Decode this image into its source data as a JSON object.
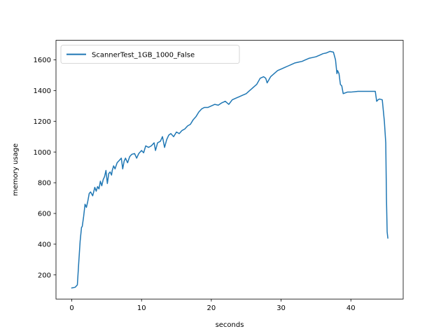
{
  "chart_data": {
    "type": "line",
    "title": "",
    "xlabel": "seconds",
    "ylabel": "memory usage",
    "xlim": [
      -2.26,
      47.5
    ],
    "ylim": [
      43,
      1727
    ],
    "xticks": [
      0,
      10,
      20,
      30,
      40
    ],
    "yticks": [
      200,
      400,
      600,
      800,
      1000,
      1200,
      1400,
      1600
    ],
    "grid": false,
    "legend": {
      "position": "upper-left"
    },
    "series": [
      {
        "name": "ScannerTest_1GB_1000_False",
        "color": "#1f77b4",
        "x": [
          0.0,
          0.5,
          0.8,
          1.0,
          1.2,
          1.4,
          1.5,
          1.7,
          1.9,
          2.1,
          2.3,
          2.5,
          2.7,
          3.0,
          3.3,
          3.5,
          3.7,
          3.9,
          4.1,
          4.3,
          4.5,
          4.7,
          4.9,
          5.1,
          5.3,
          5.5,
          5.7,
          5.8,
          6.0,
          6.2,
          6.5,
          6.8,
          7.1,
          7.3,
          7.5,
          7.7,
          8.0,
          8.3,
          8.6,
          9.0,
          9.3,
          9.6,
          10.0,
          10.3,
          10.6,
          11.0,
          11.4,
          11.8,
          12.0,
          12.3,
          12.7,
          13.0,
          13.3,
          13.6,
          13.9,
          14.2,
          14.6,
          15.0,
          15.4,
          15.8,
          16.2,
          16.6,
          17.0,
          17.4,
          17.8,
          18.2,
          18.6,
          19.0,
          19.5,
          20.0,
          20.5,
          21.0,
          21.5,
          22.0,
          22.5,
          23.0,
          23.5,
          24.0,
          24.5,
          25.0,
          25.5,
          26.0,
          26.5,
          27.0,
          27.5,
          27.8,
          28.0,
          28.5,
          29.0,
          29.5,
          30.0,
          30.5,
          31.0,
          31.5,
          32.0,
          32.5,
          33.0,
          33.5,
          34.0,
          34.5,
          35.0,
          35.5,
          36.0,
          36.5,
          37.0,
          37.5,
          37.8,
          38.0,
          38.1,
          38.2,
          38.3,
          38.5,
          38.7,
          38.9,
          39.5,
          40.0,
          41.0,
          42.0,
          43.0,
          43.5,
          43.7,
          43.9,
          44.1,
          44.5,
          44.8,
          45.0,
          45.1,
          45.2,
          45.3
        ],
        "y": [
          115,
          120,
          135,
          280,
          420,
          510,
          515,
          580,
          660,
          640,
          680,
          730,
          740,
          715,
          770,
          745,
          775,
          760,
          810,
          780,
          820,
          840,
          880,
          795,
          860,
          870,
          850,
          880,
          910,
          890,
          930,
          945,
          960,
          890,
          940,
          960,
          930,
          970,
          985,
          990,
          960,
          990,
          1010,
          995,
          1040,
          1030,
          1040,
          1060,
          1010,
          1060,
          1070,
          1100,
          1030,
          1080,
          1110,
          1120,
          1100,
          1130,
          1120,
          1140,
          1150,
          1170,
          1180,
          1210,
          1230,
          1260,
          1280,
          1290,
          1290,
          1300,
          1310,
          1305,
          1320,
          1330,
          1310,
          1340,
          1350,
          1360,
          1370,
          1380,
          1400,
          1420,
          1440,
          1480,
          1490,
          1480,
          1450,
          1490,
          1510,
          1530,
          1540,
          1550,
          1560,
          1570,
          1580,
          1585,
          1590,
          1600,
          1610,
          1615,
          1620,
          1630,
          1640,
          1645,
          1655,
          1650,
          1600,
          1510,
          1530,
          1520,
          1510,
          1440,
          1430,
          1380,
          1390,
          1390,
          1395,
          1395,
          1395,
          1395,
          1330,
          1340,
          1345,
          1340,
          1200,
          1060,
          700,
          480,
          440
        ]
      }
    ]
  }
}
